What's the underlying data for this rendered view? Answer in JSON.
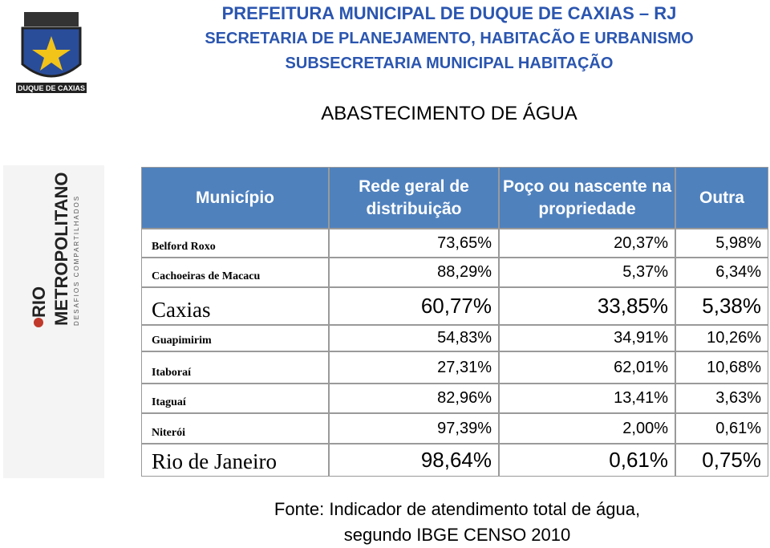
{
  "header": {
    "lines": [
      "PREFEITURA MUNICIPAL DE DUQUE DE CAXIAS – RJ",
      "SECRETARIA DE PLANEJAMENTO, HABITACÃO E URBANISMO",
      "SUBSECRETARIA MUNICIPAL HABITAÇÃO"
    ],
    "crest_label": "DUQUE DE CAXIAS"
  },
  "title": "ABASTECIMENTO DE ÁGUA",
  "side_logo": {
    "word1": "RIO",
    "word2": "METROPOLITANO",
    "tagline": "DESAFIOS COMPARTILHADOS"
  },
  "table": {
    "columns": [
      "Município",
      "Rede geral de distribuição",
      "Poço ou nascente na propriedade",
      "Outra"
    ],
    "rows": [
      [
        "Belford Roxo",
        "73,65%",
        "20,37%",
        "5,98%"
      ],
      [
        "Cachoeiras de Macacu",
        "88,29%",
        "5,37%",
        "6,34%"
      ],
      [
        "Caxias",
        "60,77%",
        "33,85%",
        "5,38%"
      ],
      [
        "Guapimirim",
        "54,83%",
        "34,91%",
        "10,26%"
      ],
      [
        "Itaboraí",
        "27,31%",
        "62,01%",
        "10,68%"
      ],
      [
        "Itaguaí",
        "82,96%",
        "13,41%",
        "3,63%"
      ],
      [
        "Niterói",
        "97,39%",
        "2,00%",
        "0,61%"
      ],
      [
        "Rio de Janeiro",
        "98,64%",
        "0,61%",
        "0,75%"
      ]
    ]
  },
  "source": [
    "Fonte: Indicador de atendimento total de água,",
    "segundo IBGE CENSO 2010"
  ]
}
